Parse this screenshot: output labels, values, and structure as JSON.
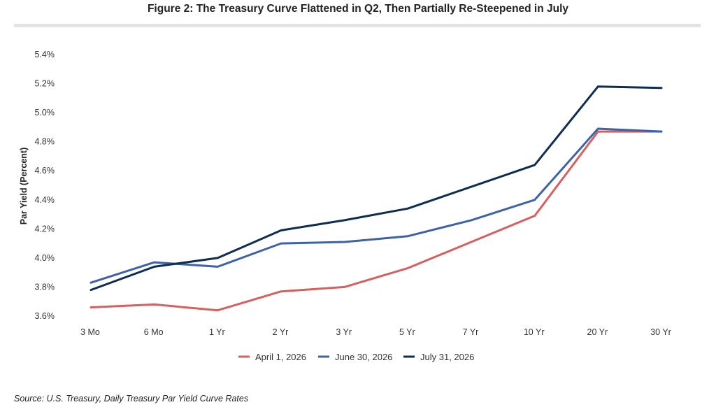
{
  "title": "Figure 2: The Treasury Curve Flattened in Q2, Then Partially Re-Steepened in July",
  "source": "Source: U.S. Treasury, Daily Treasury Par Yield Curve Rates",
  "chart_data": {
    "type": "line",
    "title": "Figure 2: The Treasury Curve Flattened in Q2, Then Partially Re-Steepened in July",
    "xlabel": "",
    "ylabel": "Par Yield (Percent)",
    "categories": [
      "3 Mo",
      "6 Mo",
      "1 Yr",
      "2 Yr",
      "3 Yr",
      "5 Yr",
      "7 Yr",
      "10 Yr",
      "20 Yr",
      "30 Yr"
    ],
    "ylim": [
      3.6,
      5.4
    ],
    "yticks": [
      "3.6%",
      "3.8%",
      "4.0%",
      "4.2%",
      "4.4%",
      "4.6%",
      "4.8%",
      "5.0%",
      "5.2%",
      "5.4%"
    ],
    "grid": false,
    "legend_position": "bottom-center",
    "series": [
      {
        "name": "April 1, 2026",
        "color": "#d65f5f",
        "values": [
          3.66,
          3.68,
          3.64,
          3.77,
          3.8,
          3.93,
          4.11,
          4.29,
          4.87,
          4.87
        ]
      },
      {
        "name": "June 30, 2026",
        "color": "#3d63a6",
        "values": [
          3.83,
          3.97,
          3.94,
          4.1,
          4.11,
          4.15,
          4.26,
          4.4,
          4.89,
          4.87
        ]
      },
      {
        "name": "July 31, 2026",
        "color": "#0f2d52",
        "values": [
          3.78,
          3.94,
          4.0,
          4.19,
          4.26,
          4.34,
          4.49,
          4.64,
          5.18,
          5.17
        ]
      }
    ]
  }
}
